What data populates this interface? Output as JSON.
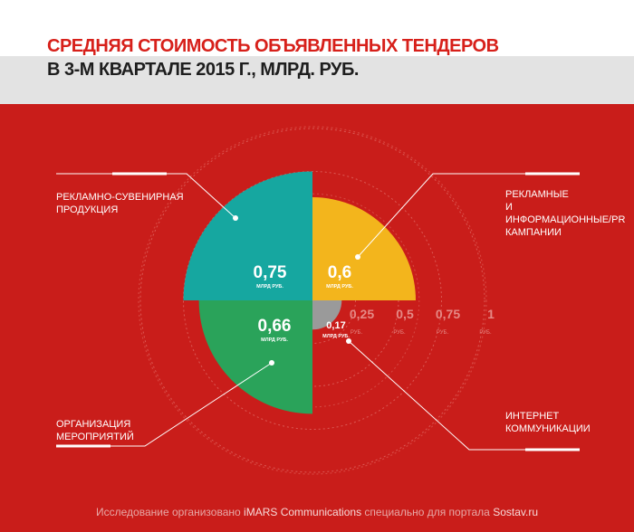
{
  "header": {
    "title_line1": "СРЕДНЯЯ СТОИМОСТЬ ОБЪЯВЛЕННЫХ ТЕНДЕРОВ",
    "title_line2": "В 3-М КВАРТАЛЕ 2015 Г., МЛРД. РУБ."
  },
  "colors": {
    "background": "#c91d1a",
    "teal": "#16a7a0",
    "yellow": "#f3b51c",
    "green": "#2aa35a",
    "gray": "#9a9a9a"
  },
  "chart_data": {
    "type": "polar-area",
    "title": "СРЕДНЯЯ СТОИМОСТЬ ОБЪЯВЛЕННЫХ ТЕНДЕРОВ В 3-М КВАРТАЛЕ 2015 Г., МЛРД. РУБ.",
    "unit": "МЛРД. РУБ.",
    "segments": [
      {
        "name": "РЕКЛАМНО-СУВЕНИРНАЯ ПРОДУКЦИЯ",
        "value": 0.75,
        "value_label": "0,75",
        "color": "#16a7a0",
        "quadrant": "top-left"
      },
      {
        "name": "РЕКЛАМНЫЕ И ИНФОРМАЦИОННЫЕ/PR КАМПАНИИ",
        "value": 0.6,
        "value_label": "0,6",
        "color": "#f3b51c",
        "quadrant": "top-right"
      },
      {
        "name": "ОРГАНИЗАЦИЯ МЕРОПРИЯТИЙ",
        "value": 0.66,
        "value_label": "0,66",
        "color": "#2aa35a",
        "quadrant": "bottom-left"
      },
      {
        "name": "ИНТЕРНЕТ КОММУНИКАЦИИ",
        "value": 0.17,
        "value_label": "0,17",
        "color": "#9a9a9a",
        "quadrant": "bottom-right"
      }
    ],
    "scale": [
      {
        "value": 0.25,
        "label": "0,25"
      },
      {
        "value": 0.5,
        "label": "0,5"
      },
      {
        "value": 0.75,
        "label": "0,75"
      },
      {
        "value": 1,
        "label": "1"
      }
    ],
    "unit_label": "МЛРД РУБ.",
    "scale_unit_label": "РУБ.",
    "scale_max": 1
  },
  "labels": {
    "souvenir": [
      "РЕКЛАМНО-СУВЕНИРНАЯ",
      "ПРОДУКЦИЯ"
    ],
    "pr": [
      "РЕКЛАМНЫЕ",
      "И ИНФОРМАЦИОННЫЕ/PR",
      "КАМПАНИИ"
    ],
    "events": [
      "ОРГАНИЗАЦИЯ",
      "МЕРОПРИЯТИЙ"
    ],
    "internet": [
      "ИНТЕРНЕТ",
      "КОММУНИКАЦИИ"
    ]
  },
  "footer": {
    "prefix": "Исследование организовано ",
    "org": "iMARS Communications",
    "middle": " специально для портала ",
    "portal": "Sostav.ru"
  }
}
